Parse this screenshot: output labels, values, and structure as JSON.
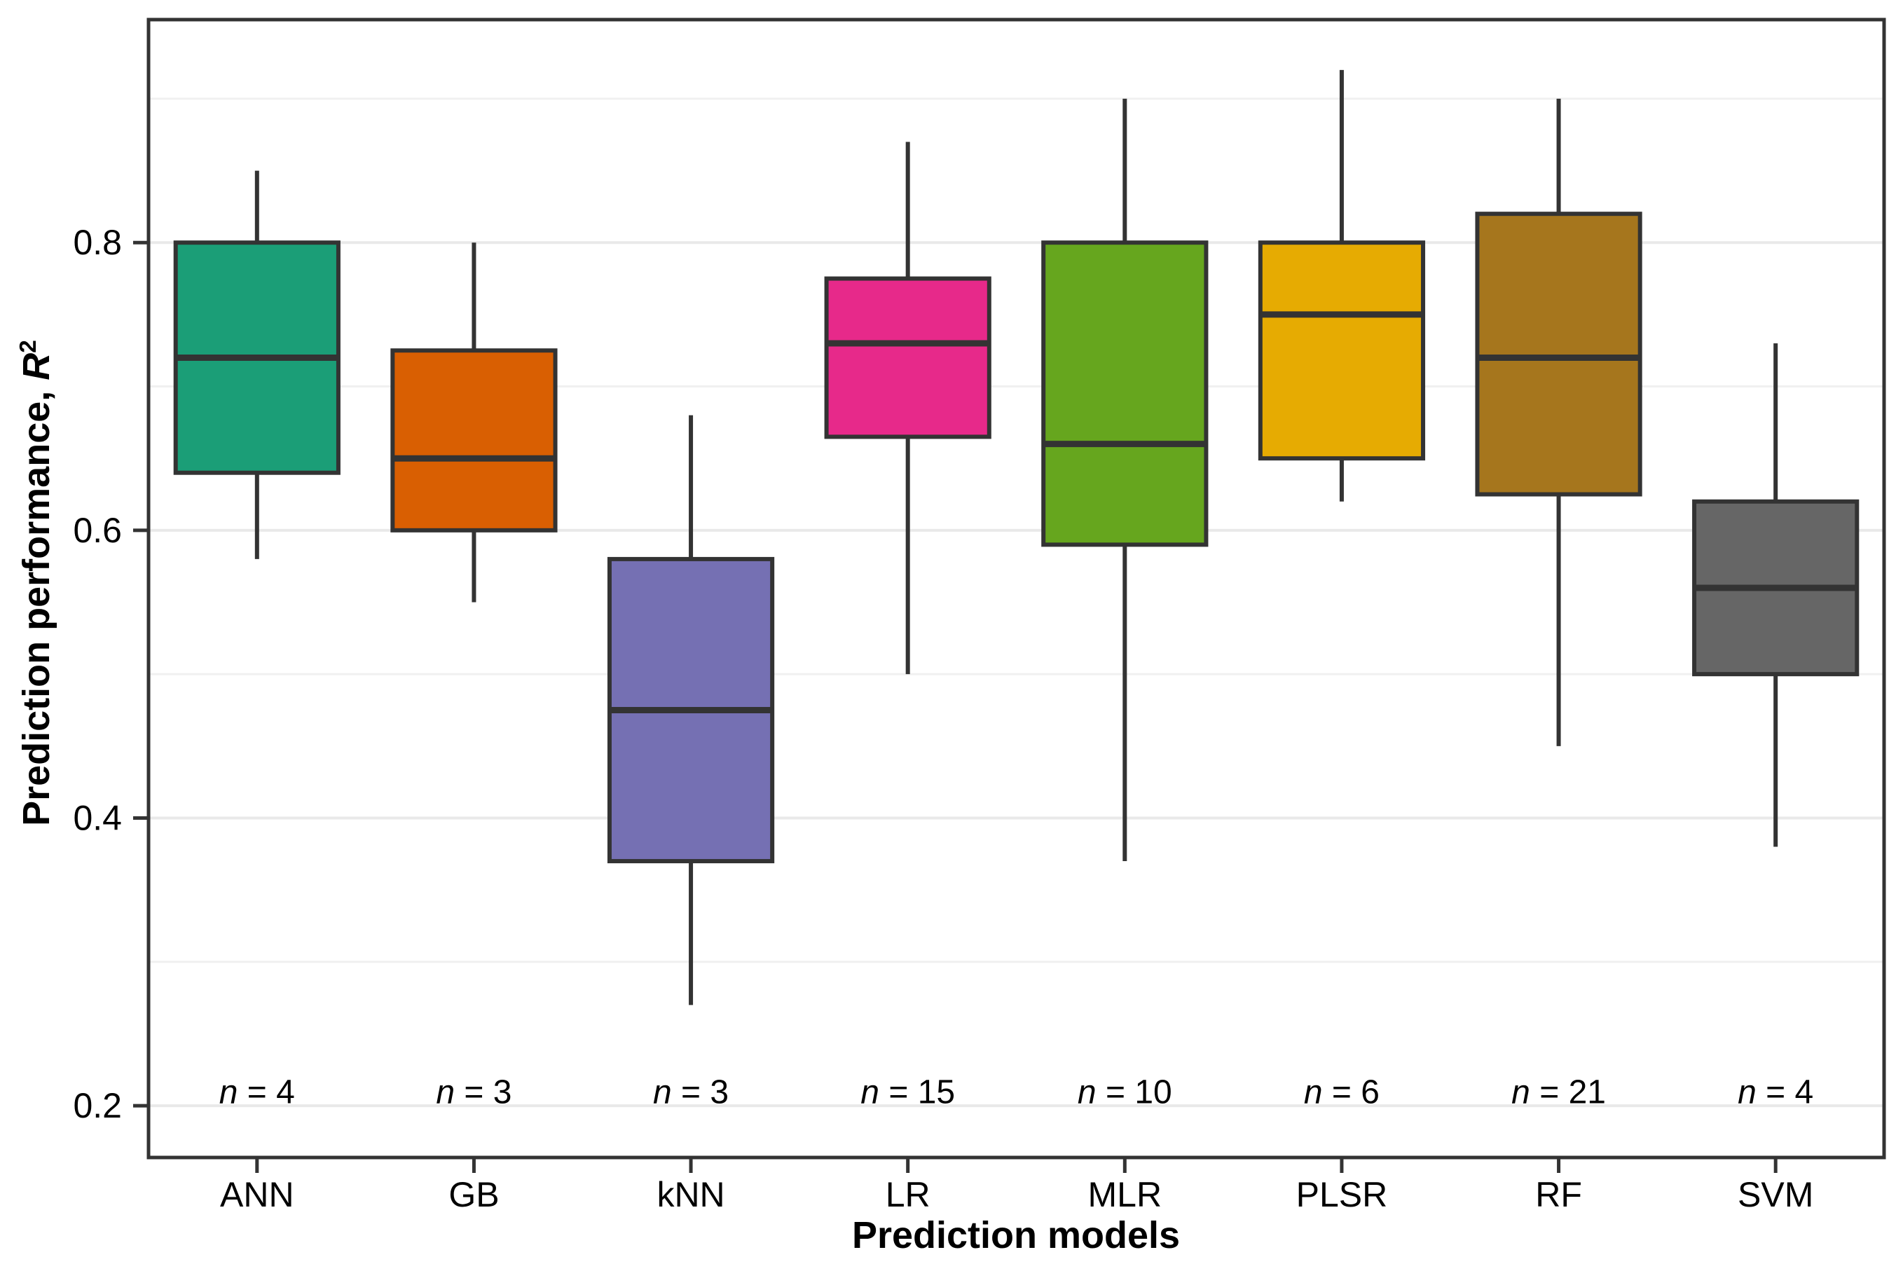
{
  "figure": {
    "background": "#ffffff",
    "panel_border_color": "#333333",
    "grid_major_color": "#e9e9e9",
    "grid_minor_color": "#f0f0f0",
    "box_stroke_color": "#333333",
    "tick_color": "#333333",
    "text_color": "#000000"
  },
  "y_axis": {
    "title_prefix": "Prediction performance, ",
    "title_var": "R",
    "title_sup": "2",
    "min": 0.164,
    "max": 0.955,
    "ticks": [
      0.2,
      0.4,
      0.6,
      0.8
    ],
    "tick_labels": [
      "0.2",
      "0.4",
      "0.6",
      "0.8"
    ],
    "minor_gridlines": [
      0.3,
      0.5,
      0.7,
      0.9
    ]
  },
  "x_axis": {
    "title": "Prediction models"
  },
  "chart_data": {
    "type": "boxplot",
    "title": "",
    "xlabel": "Prediction models",
    "ylabel": "Prediction performance, R2",
    "ylim": [
      0.164,
      0.955
    ],
    "grid": true,
    "categories": [
      "ANN",
      "GB",
      "kNN",
      "LR",
      "MLR",
      "PLSR",
      "RF",
      "SVM"
    ],
    "n_labels": [
      "n = 4",
      "n = 3",
      "n = 3",
      "n = 15",
      "n = 10",
      "n = 6",
      "n = 21",
      "n = 4"
    ],
    "n_label_y": 0.21,
    "series": [
      {
        "name": "ANN",
        "color": "#1B9E77",
        "n": 4,
        "whisker_low": 0.58,
        "q1": 0.64,
        "median": 0.72,
        "q3": 0.8,
        "whisker_high": 0.85
      },
      {
        "name": "GB",
        "color": "#D95F02",
        "n": 3,
        "whisker_low": 0.55,
        "q1": 0.6,
        "median": 0.65,
        "q3": 0.725,
        "whisker_high": 0.8
      },
      {
        "name": "kNN",
        "color": "#7570B3",
        "n": 3,
        "whisker_low": 0.27,
        "q1": 0.37,
        "median": 0.475,
        "q3": 0.58,
        "whisker_high": 0.68
      },
      {
        "name": "LR",
        "color": "#E7298A",
        "n": 15,
        "whisker_low": 0.5,
        "q1": 0.665,
        "median": 0.73,
        "q3": 0.775,
        "whisker_high": 0.87
      },
      {
        "name": "MLR",
        "color": "#66A61E",
        "n": 10,
        "whisker_low": 0.37,
        "q1": 0.59,
        "median": 0.66,
        "q3": 0.8,
        "whisker_high": 0.9
      },
      {
        "name": "PLSR",
        "color": "#E6AB02",
        "n": 6,
        "whisker_low": 0.62,
        "q1": 0.65,
        "median": 0.75,
        "q3": 0.8,
        "whisker_high": 0.92
      },
      {
        "name": "RF",
        "color": "#A6761D",
        "n": 21,
        "whisker_low": 0.45,
        "q1": 0.625,
        "median": 0.72,
        "q3": 0.82,
        "whisker_high": 0.9
      },
      {
        "name": "SVM",
        "color": "#666666",
        "n": 4,
        "whisker_low": 0.38,
        "q1": 0.5,
        "median": 0.56,
        "q3": 0.62,
        "whisker_high": 0.73
      }
    ]
  }
}
